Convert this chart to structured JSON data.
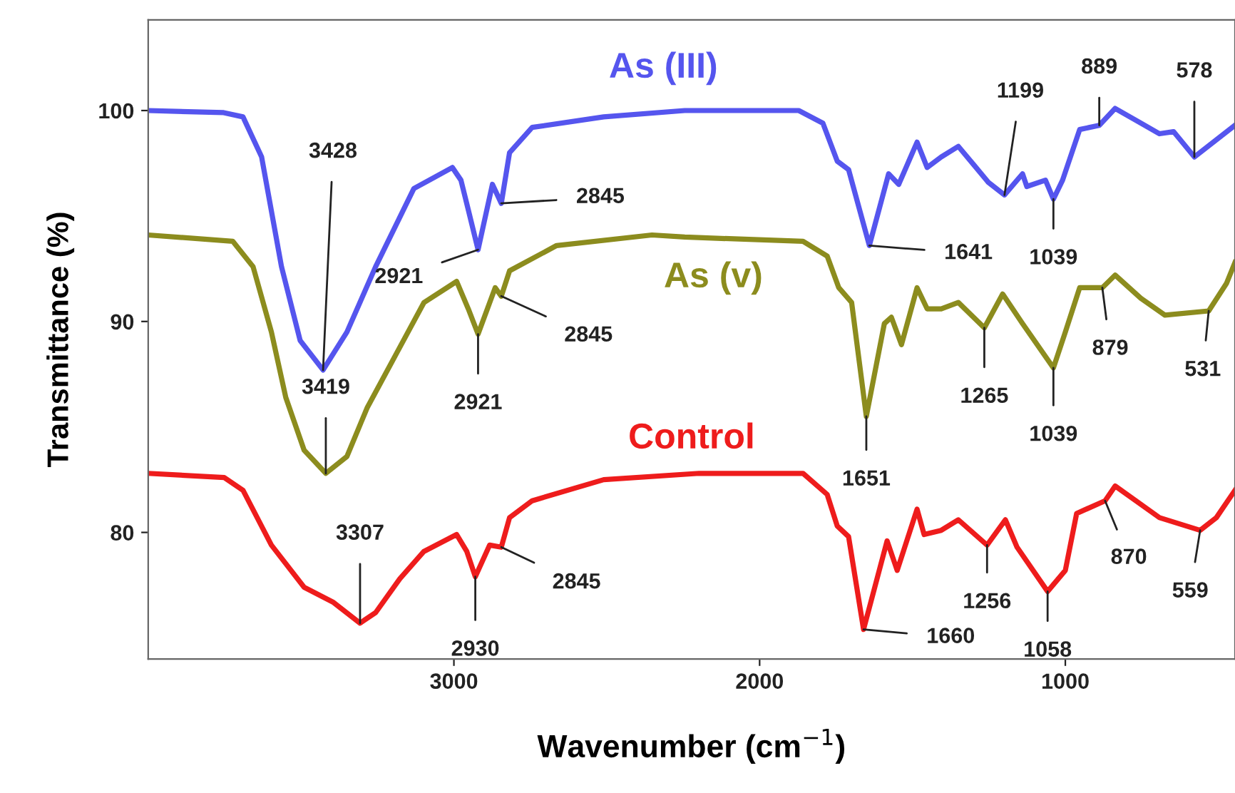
{
  "chart_data": {
    "type": "line",
    "xlabel": "Wavenumber (cm$^{−1}$)",
    "ylabel": "Transmittance (%)",
    "xlim": [
      4000,
      445
    ],
    "xticks": [
      3000,
      2000,
      1000
    ],
    "ylim": [
      74,
      104.3
    ],
    "yticks": [
      80,
      90,
      100
    ],
    "grid": false,
    "legend": false,
    "marker": "none",
    "line_style": "solid",
    "series": [
      {
        "name": "As (III)",
        "color": "#5555ee",
        "x": [
          4000,
          3753,
          3690,
          3629,
          3564,
          3503,
          3428,
          3350,
          3256,
          3131,
          3005,
          2977,
          2953,
          2921,
          2874,
          2845,
          2818,
          2744,
          2510,
          2245,
          1872,
          1793,
          1746,
          1709,
          1641,
          1578,
          1545,
          1485,
          1452,
          1406,
          1350,
          1298,
          1252,
          1199,
          1140,
          1126,
          1065,
          1039,
          1009,
          953,
          889,
          837,
          753,
          692,
          646,
          578,
          445
        ],
        "values": [
          100.0,
          99.9,
          99.7,
          97.8,
          92.6,
          89.1,
          87.7,
          89.5,
          92.6,
          96.3,
          97.3,
          96.7,
          95.3,
          93.4,
          96.5,
          95.6,
          98.0,
          99.2,
          99.7,
          100.0,
          100.0,
          99.4,
          97.6,
          97.2,
          93.6,
          97.0,
          96.5,
          98.5,
          97.3,
          97.8,
          98.3,
          97.4,
          96.6,
          96.0,
          97.0,
          96.4,
          96.7,
          95.8,
          96.7,
          99.1,
          99.3,
          100.1,
          99.4,
          98.9,
          99.0,
          97.8,
          99.3
        ]
      },
      {
        "name": "As (v)",
        "color": "#8c8c1e",
        "x": [
          4000,
          3723,
          3657,
          3597,
          3550,
          3490,
          3419,
          3350,
          3284,
          3191,
          3098,
          2991,
          2953,
          2921,
          2865,
          2845,
          2818,
          2664,
          2352,
          2245,
          1858,
          1779,
          1741,
          1699,
          1651,
          1592,
          1569,
          1536,
          1485,
          1452,
          1406,
          1350,
          1265,
          1205,
          1140,
          1039,
          1000,
          953,
          879,
          837,
          753,
          674,
          531,
          473,
          445
        ],
        "values": [
          94.1,
          93.8,
          92.6,
          89.5,
          86.4,
          83.9,
          82.8,
          83.6,
          85.9,
          88.4,
          90.9,
          91.9,
          90.6,
          89.4,
          91.6,
          91.2,
          92.4,
          93.6,
          94.1,
          94.0,
          93.8,
          93.1,
          91.6,
          90.9,
          85.5,
          89.9,
          90.2,
          88.9,
          91.6,
          90.6,
          90.6,
          90.9,
          89.7,
          91.3,
          89.9,
          87.8,
          89.5,
          91.6,
          91.6,
          92.2,
          91.1,
          90.3,
          90.5,
          91.8,
          92.8
        ]
      },
      {
        "name": "Control",
        "color": "#ee1c1c",
        "x": [
          4000,
          3751,
          3690,
          3597,
          3490,
          3396,
          3307,
          3256,
          3177,
          3098,
          2991,
          2958,
          2930,
          2883,
          2845,
          2818,
          2744,
          2510,
          2198,
          1858,
          1779,
          1746,
          1709,
          1660,
          1583,
          1550,
          1485,
          1462,
          1406,
          1350,
          1256,
          1196,
          1158,
          1058,
          1000,
          963,
          870,
          837,
          692,
          559,
          506,
          445
        ],
        "values": [
          82.8,
          82.6,
          82.0,
          79.4,
          77.4,
          76.7,
          75.7,
          76.2,
          77.8,
          79.1,
          79.9,
          79.1,
          77.9,
          79.4,
          79.3,
          80.7,
          81.5,
          82.5,
          82.8,
          82.8,
          81.8,
          80.3,
          79.8,
          75.4,
          79.6,
          78.2,
          81.1,
          79.9,
          80.1,
          80.6,
          79.4,
          80.6,
          79.3,
          77.2,
          78.2,
          80.9,
          81.5,
          82.2,
          80.7,
          80.1,
          80.7,
          82.0
        ]
      }
    ],
    "annotations": [
      {
        "text": "3428",
        "x": 3428,
        "y": 87.7
      },
      {
        "text": "2921",
        "x": 2921,
        "y": 93.4
      },
      {
        "text": "2845",
        "x": 2845,
        "y": 95.6
      },
      {
        "text": "1641",
        "x": 1641,
        "y": 93.6
      },
      {
        "text": "1199",
        "x": 1199,
        "y": 96.0
      },
      {
        "text": "1039",
        "x": 1039,
        "y": 95.8
      },
      {
        "text": "889",
        "x": 889,
        "y": 99.3
      },
      {
        "text": "578",
        "x": 578,
        "y": 97.8
      },
      {
        "text": "3419",
        "x": 3419,
        "y": 82.8
      },
      {
        "text": "2921",
        "x": 2921,
        "y": 89.4
      },
      {
        "text": "2845",
        "x": 2845,
        "y": 91.2
      },
      {
        "text": "1651",
        "x": 1651,
        "y": 85.5
      },
      {
        "text": "1265",
        "x": 1265,
        "y": 89.7
      },
      {
        "text": "1039",
        "x": 1039,
        "y": 87.8
      },
      {
        "text": "879",
        "x": 879,
        "y": 91.6
      },
      {
        "text": "531",
        "x": 531,
        "y": 90.5
      },
      {
        "text": "3307",
        "x": 3307,
        "y": 75.7
      },
      {
        "text": "2930",
        "x": 2930,
        "y": 77.9
      },
      {
        "text": "2845",
        "x": 2845,
        "y": 79.3
      },
      {
        "text": "1660",
        "x": 1660,
        "y": 75.4
      },
      {
        "text": "1256",
        "x": 1256,
        "y": 79.4
      },
      {
        "text": "1058",
        "x": 1058,
        "y": 77.2
      },
      {
        "text": "870",
        "x": 870,
        "y": 81.5
      },
      {
        "text": "559",
        "x": 559,
        "y": 80.1
      }
    ]
  }
}
